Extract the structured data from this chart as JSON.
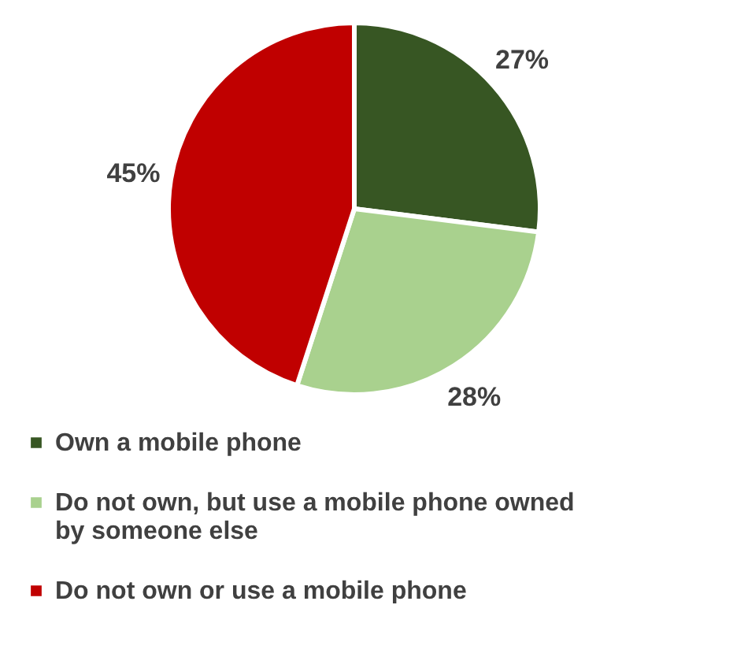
{
  "chart_data": {
    "type": "pie",
    "categories": [
      "Own a mobile phone",
      "Do not own, but use a mobile phone owned by someone else",
      "Do not own or use a mobile phone"
    ],
    "values": [
      27,
      28,
      45
    ],
    "colors": [
      "#375623",
      "#a9d18e",
      "#c00000"
    ],
    "value_labels": [
      "27%",
      "28%",
      "45%"
    ],
    "legend": "bottom left"
  }
}
